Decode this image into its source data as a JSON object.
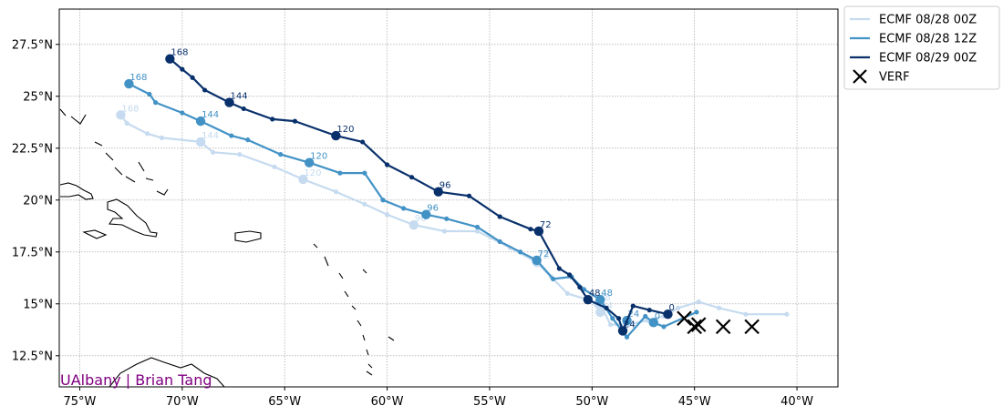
{
  "chart_data": {
    "type": "line",
    "xlim": [
      -76,
      -38
    ],
    "ylim": [
      11,
      29.2
    ],
    "x_ticks": [
      {
        "value": -75,
        "label": "75°W"
      },
      {
        "value": -70,
        "label": "70°W"
      },
      {
        "value": -65,
        "label": "65°W"
      },
      {
        "value": -60,
        "label": "60°W"
      },
      {
        "value": -55,
        "label": "55°W"
      },
      {
        "value": -50,
        "label": "50°W"
      },
      {
        "value": -45,
        "label": "45°W"
      },
      {
        "value": -40,
        "label": "40°W"
      }
    ],
    "y_ticks": [
      {
        "value": 12.5,
        "label": "12.5°N"
      },
      {
        "value": 15,
        "label": "15°N"
      },
      {
        "value": 17.5,
        "label": "17.5°N"
      },
      {
        "value": 20,
        "label": "20°N"
      },
      {
        "value": 22.5,
        "label": "22.5°N"
      },
      {
        "value": 25,
        "label": "25°N"
      },
      {
        "value": 27.5,
        "label": "27.5°N"
      }
    ],
    "grid": true,
    "legend_position": "outside-top-right",
    "series": [
      {
        "name": "ECMF 08/28 00Z",
        "color": "#c6dbef",
        "track": [
          [
            -40.5,
            14.5
          ],
          [
            -42.5,
            14.5
          ],
          [
            -43.8,
            14.8
          ],
          [
            -44.8,
            15.1
          ],
          [
            -45.8,
            14.8
          ],
          [
            -46.5,
            14.4
          ],
          [
            -47.3,
            14.2
          ],
          [
            -48.2,
            14.0
          ],
          [
            -49.1,
            14.0
          ],
          [
            -49.5,
            14.8
          ],
          [
            -50.2,
            15.2
          ],
          [
            -51.2,
            15.5
          ],
          [
            -52.0,
            16.3
          ],
          [
            -52.7,
            17.0
          ],
          [
            -54.0,
            17.7
          ],
          [
            -55.6,
            18.5
          ],
          [
            -57.2,
            18.5
          ],
          [
            -58.7,
            18.8
          ],
          [
            -60.0,
            19.3
          ],
          [
            -61.1,
            19.8
          ],
          [
            -62.5,
            20.4
          ],
          [
            -64.1,
            21.0
          ],
          [
            -65.5,
            21.6
          ],
          [
            -67.2,
            22.2
          ],
          [
            -68.5,
            22.3
          ],
          [
            -69.1,
            22.8
          ],
          [
            -71.0,
            23.0
          ],
          [
            -71.7,
            23.2
          ],
          [
            -72.7,
            23.7
          ],
          [
            -73.0,
            24.1
          ]
        ],
        "labels": [
          {
            "lon": -49.6,
            "lat": 14.6,
            "text": "24"
          },
          {
            "lon": -49.7,
            "lat": 15.0,
            "text": "48"
          },
          {
            "lon": -52.7,
            "lat": 17.0,
            "text": "72"
          },
          {
            "lon": -58.7,
            "lat": 18.8,
            "text": "96"
          },
          {
            "lon": -64.1,
            "lat": 21.0,
            "text": "120"
          },
          {
            "lon": -69.1,
            "lat": 22.8,
            "text": "144"
          },
          {
            "lon": -73.0,
            "lat": 24.1,
            "text": "168"
          }
        ]
      },
      {
        "name": "ECMF 08/28 12Z",
        "color": "#4292c6",
        "track": [
          [
            -44.9,
            14.6
          ],
          [
            -46.5,
            13.9
          ],
          [
            -47.0,
            14.1
          ],
          [
            -47.4,
            14.4
          ],
          [
            -48.3,
            13.4
          ],
          [
            -49.0,
            14.3
          ],
          [
            -49.6,
            15.2
          ],
          [
            -50.4,
            15.7
          ],
          [
            -51.0,
            16.3
          ],
          [
            -51.9,
            16.2
          ],
          [
            -52.7,
            17.1
          ],
          [
            -53.5,
            17.5
          ],
          [
            -54.5,
            18.0
          ],
          [
            -55.6,
            18.7
          ],
          [
            -57.1,
            19.1
          ],
          [
            -58.1,
            19.3
          ],
          [
            -59.2,
            19.6
          ],
          [
            -60.2,
            20.0
          ],
          [
            -61.1,
            21.3
          ],
          [
            -62.3,
            21.3
          ],
          [
            -63.8,
            21.8
          ],
          [
            -65.2,
            22.2
          ],
          [
            -66.8,
            22.9
          ],
          [
            -67.6,
            23.1
          ],
          [
            -69.1,
            23.8
          ],
          [
            -70.0,
            24.2
          ],
          [
            -71.3,
            24.7
          ],
          [
            -71.6,
            25.1
          ],
          [
            -72.6,
            25.6
          ]
        ],
        "labels": [
          {
            "lon": -47.0,
            "lat": 14.1,
            "text": "0"
          },
          {
            "lon": -48.3,
            "lat": 14.2,
            "text": "24"
          },
          {
            "lon": -49.6,
            "lat": 15.2,
            "text": "48"
          },
          {
            "lon": -52.7,
            "lat": 17.1,
            "text": "72"
          },
          {
            "lon": -58.1,
            "lat": 19.3,
            "text": "96"
          },
          {
            "lon": -63.8,
            "lat": 21.8,
            "text": "120"
          },
          {
            "lon": -69.1,
            "lat": 23.8,
            "text": "144"
          },
          {
            "lon": -72.6,
            "lat": 25.6,
            "text": "168"
          }
        ]
      },
      {
        "name": "ECMF 08/29 00Z",
        "color": "#08306b",
        "track": [
          [
            -46.3,
            14.5
          ],
          [
            -47.2,
            14.7
          ],
          [
            -48.0,
            14.9
          ],
          [
            -48.5,
            13.7
          ],
          [
            -48.7,
            14.3
          ],
          [
            -49.3,
            14.8
          ],
          [
            -50.2,
            15.2
          ],
          [
            -50.6,
            15.8
          ],
          [
            -51.1,
            16.4
          ],
          [
            -51.6,
            16.7
          ],
          [
            -52.6,
            18.5
          ],
          [
            -53.0,
            18.6
          ],
          [
            -54.5,
            19.2
          ],
          [
            -56.0,
            20.2
          ],
          [
            -57.5,
            20.4
          ],
          [
            -58.8,
            21.1
          ],
          [
            -60.0,
            21.7
          ],
          [
            -61.2,
            22.8
          ],
          [
            -62.5,
            23.1
          ],
          [
            -64.5,
            23.8
          ],
          [
            -65.6,
            23.9
          ],
          [
            -67.0,
            24.4
          ],
          [
            -67.7,
            24.7
          ],
          [
            -68.9,
            25.3
          ],
          [
            -69.5,
            25.9
          ],
          [
            -70.0,
            26.3
          ],
          [
            -70.6,
            26.8
          ]
        ],
        "labels": [
          {
            "lon": -46.3,
            "lat": 14.5,
            "text": "0"
          },
          {
            "lon": -48.5,
            "lat": 13.7,
            "text": "24"
          },
          {
            "lon": -50.2,
            "lat": 15.2,
            "text": "48"
          },
          {
            "lon": -52.6,
            "lat": 18.5,
            "text": "72"
          },
          {
            "lon": -57.5,
            "lat": 20.4,
            "text": "96"
          },
          {
            "lon": -62.5,
            "lat": 23.1,
            "text": "120"
          },
          {
            "lon": -67.7,
            "lat": 24.7,
            "text": "144"
          },
          {
            "lon": -70.6,
            "lat": 26.8,
            "text": "168"
          }
        ]
      }
    ],
    "verification": {
      "name": "VERF",
      "color": "#000000",
      "points": [
        [
          -45.5,
          14.3
        ],
        [
          -45.0,
          13.9
        ],
        [
          -44.8,
          14.0
        ],
        [
          -43.6,
          13.9
        ],
        [
          -42.2,
          13.9
        ]
      ]
    }
  },
  "map": {
    "credit": "UAlbany | Brian Tang",
    "credit_color": "#800080"
  }
}
